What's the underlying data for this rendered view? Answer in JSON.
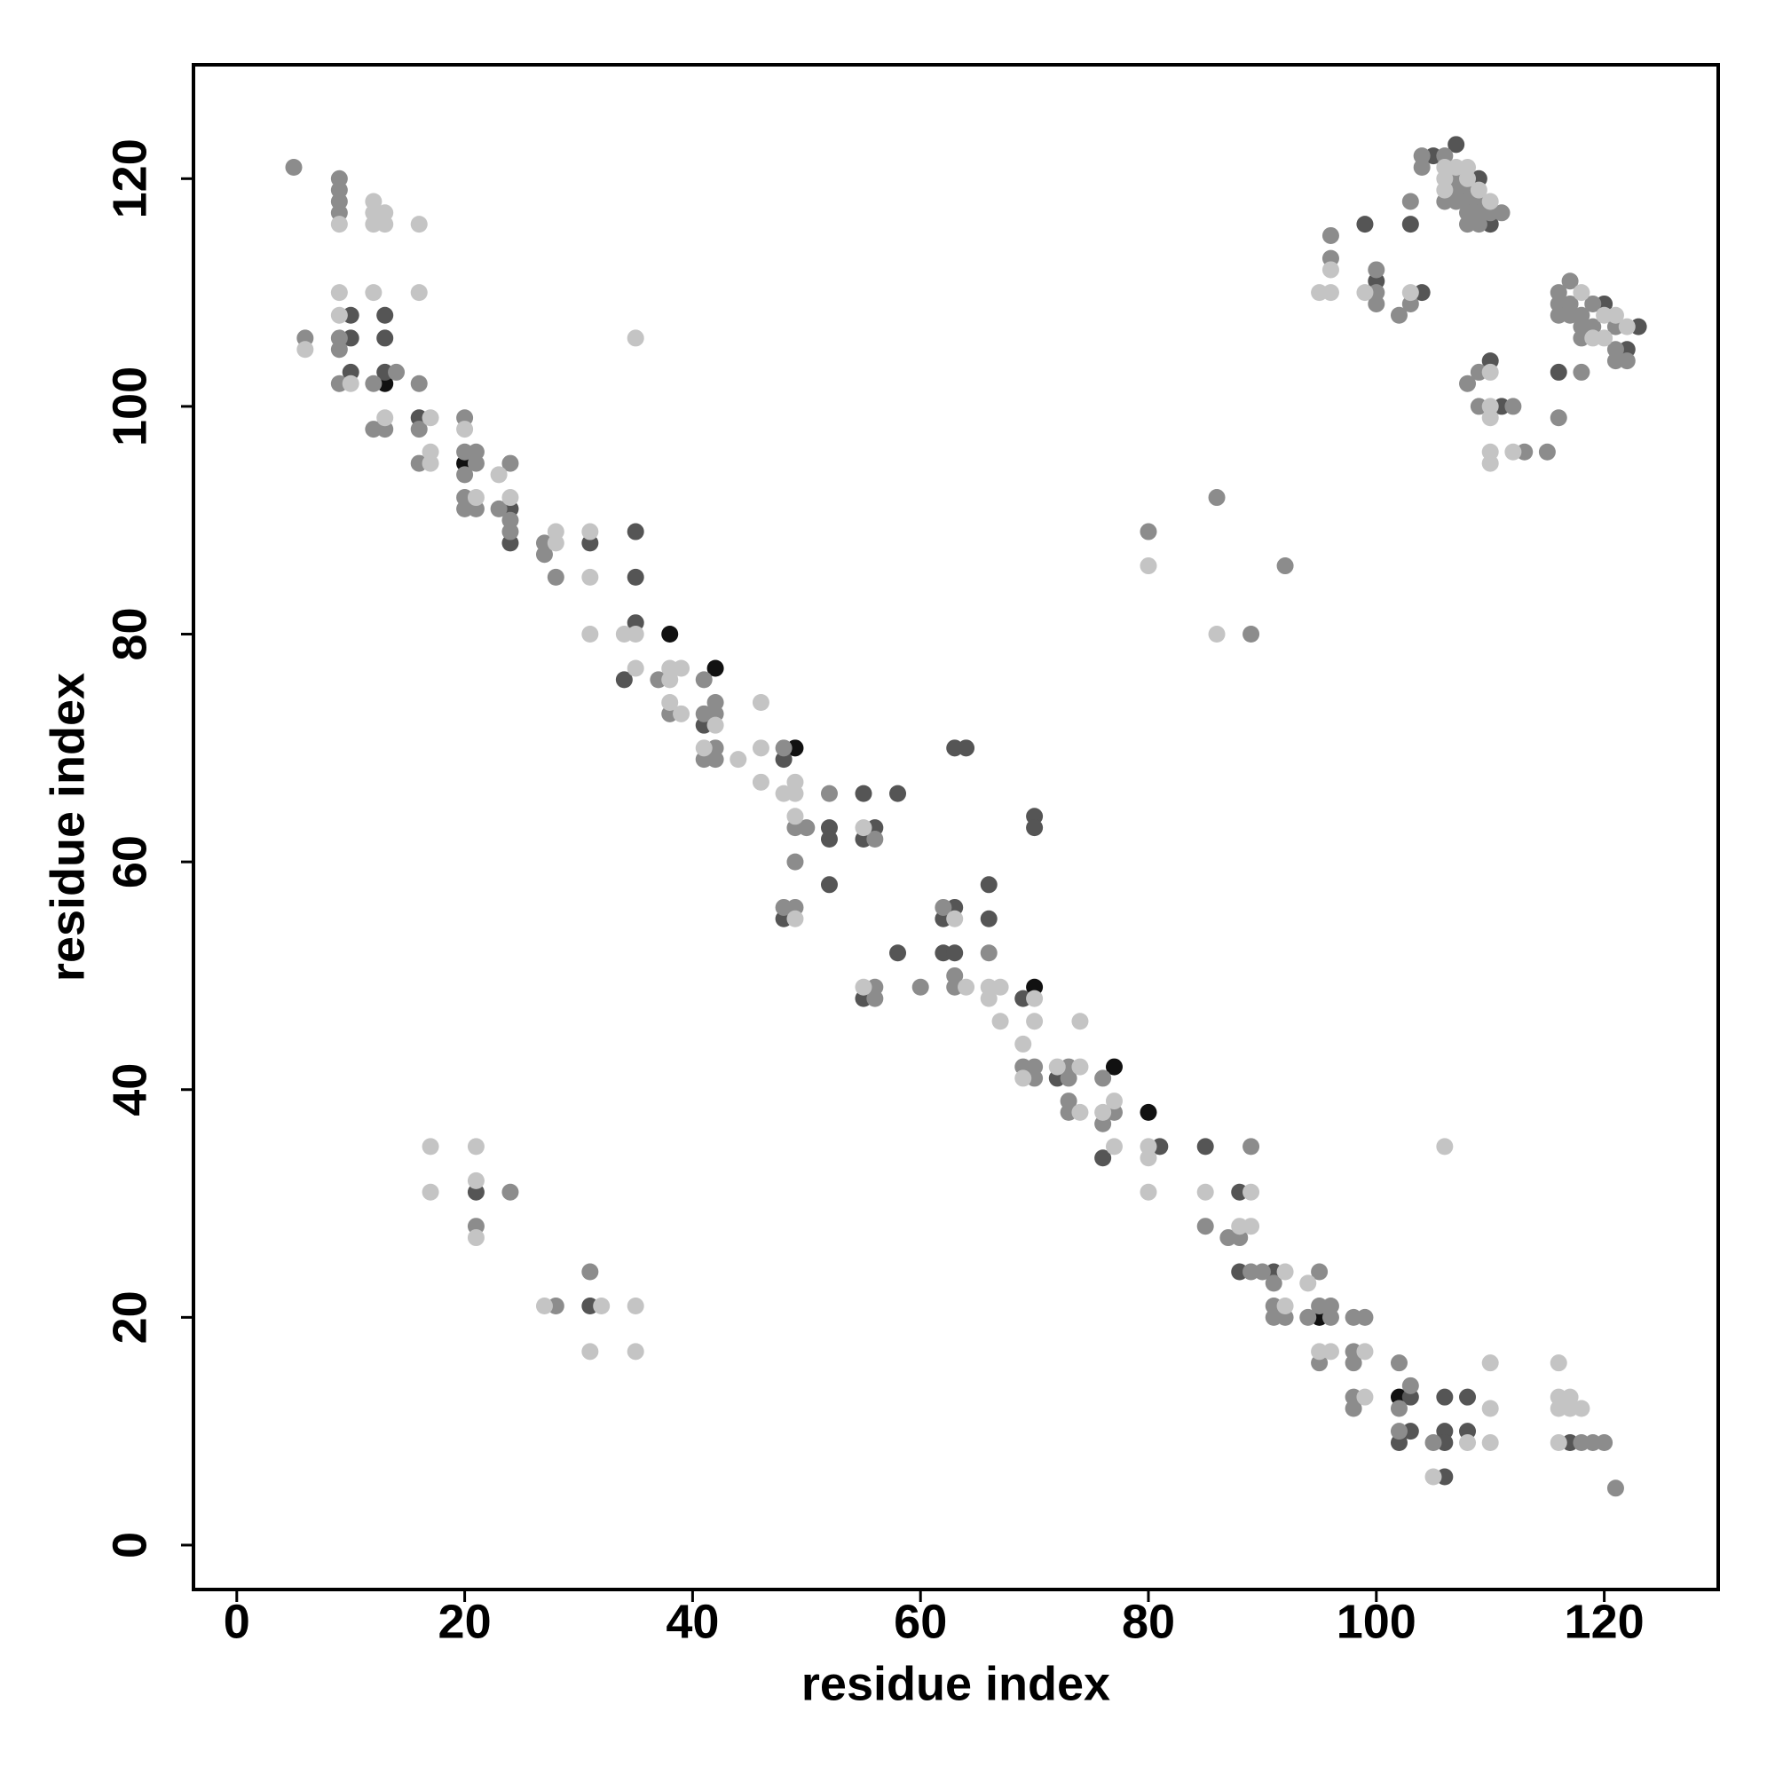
{
  "chart_data": {
    "type": "scatter",
    "x_label": "residue index",
    "y_label": "residue index",
    "xlim": [
      -3.8,
      130
    ],
    "ylim": [
      -3.9,
      130
    ],
    "xticks": [
      0,
      20,
      40,
      60,
      80,
      100,
      120
    ],
    "yticks": [
      0,
      20,
      40,
      60,
      80,
      100,
      120
    ],
    "series": [
      {
        "color": "#111111",
        "x": [
          13,
          20,
          38,
          42,
          49,
          70,
          77,
          80,
          95,
          102
        ],
        "values": [
          102,
          95,
          80,
          77,
          70,
          49,
          42,
          38,
          20,
          13
        ]
      },
      {
        "color": "#555555",
        "x": [
          10,
          13,
          10,
          13,
          10,
          13,
          16,
          24,
          24,
          31,
          35,
          35,
          35,
          34,
          41,
          48,
          52,
          52,
          55,
          55,
          56,
          58,
          52,
          48,
          55,
          58,
          63,
          64,
          63,
          62,
          62,
          63,
          66,
          66,
          70,
          70,
          69,
          72,
          76,
          81,
          85,
          88,
          88,
          91,
          103,
          103,
          102,
          106,
          106,
          106,
          108,
          108,
          106,
          117,
          21,
          31,
          99,
          100,
          104,
          103,
          105,
          107,
          109,
          110,
          110,
          111,
          120,
          123,
          122,
          116
        ],
        "values": [
          108,
          108,
          106,
          106,
          103,
          103,
          99,
          91,
          88,
          88,
          89,
          85,
          81,
          76,
          72,
          69,
          63,
          62,
          66,
          62,
          63,
          66,
          58,
          55,
          48,
          52,
          70,
          70,
          56,
          55,
          52,
          52,
          58,
          55,
          64,
          63,
          48,
          41,
          34,
          35,
          35,
          31,
          24,
          24,
          13,
          10,
          9,
          10,
          9,
          13,
          13,
          10,
          6,
          9,
          31,
          21,
          116,
          111,
          110,
          116,
          122,
          123,
          120,
          116,
          104,
          100,
          109,
          107,
          105,
          103
        ]
      },
      {
        "color": "#8c8c8c",
        "x": [
          5,
          9,
          9,
          9,
          9,
          6,
          9,
          9,
          14,
          9,
          12,
          16,
          12,
          13,
          16,
          16,
          20,
          20,
          21,
          21,
          20,
          24,
          20,
          20,
          21,
          23,
          24,
          24,
          27,
          27,
          28,
          37,
          41,
          38,
          41,
          42,
          42,
          42,
          41,
          42,
          48,
          49,
          50,
          52,
          56,
          49,
          48,
          49,
          56,
          56,
          60,
          62,
          63,
          63,
          66,
          69,
          70,
          70,
          73,
          73,
          73,
          73,
          76,
          77,
          76,
          89,
          85,
          87,
          88,
          89,
          90,
          91,
          95,
          91,
          91,
          92,
          94,
          95,
          96,
          96,
          98,
          99,
          95,
          98,
          98,
          98,
          98,
          102,
          103,
          102,
          102,
          105,
          118,
          119,
          120,
          121,
          24,
          21,
          28,
          31,
          80,
          86,
          92,
          89,
          96,
          96,
          100,
          100,
          100,
          102,
          103,
          103,
          104,
          104,
          106,
          107,
          107,
          108,
          106,
          107,
          108,
          109,
          108,
          109,
          110,
          111,
          108,
          109,
          108,
          109,
          109,
          112,
          113,
          115,
          116,
          117,
          116,
          117,
          116,
          117,
          118,
          119,
          118,
          119,
          118,
          121,
          121,
          121,
          122,
          118,
          116
        ],
        "values": [
          121,
          120,
          119,
          118,
          117,
          106,
          106,
          105,
          103,
          102,
          102,
          102,
          98,
          98,
          98,
          95,
          99,
          96,
          96,
          95,
          94,
          95,
          92,
          91,
          91,
          91,
          90,
          89,
          88,
          87,
          85,
          76,
          76,
          73,
          73,
          74,
          73,
          70,
          69,
          69,
          70,
          63,
          63,
          66,
          62,
          60,
          56,
          56,
          49,
          48,
          49,
          56,
          50,
          49,
          52,
          42,
          42,
          41,
          42,
          41,
          39,
          38,
          41,
          38,
          37,
          35,
          28,
          27,
          27,
          24,
          24,
          23,
          24,
          21,
          20,
          20,
          20,
          21,
          21,
          20,
          20,
          20,
          16,
          17,
          16,
          13,
          12,
          16,
          14,
          12,
          10,
          9,
          9,
          9,
          9,
          5,
          31,
          28,
          21,
          24,
          89,
          92,
          86,
          80,
          115,
          113,
          112,
          110,
          109,
          108,
          109,
          118,
          122,
          121,
          122,
          120,
          119,
          119,
          118,
          118,
          118,
          118,
          117,
          117,
          117,
          117,
          116,
          116,
          102,
          103,
          100,
          100,
          96,
          96,
          110,
          111,
          109,
          109,
          108,
          108,
          108,
          109,
          107,
          107,
          106,
          107,
          105,
          104,
          104,
          103,
          99
        ]
      },
      {
        "color": "#c4c4c4",
        "x": [
          9,
          12,
          12,
          12,
          13,
          13,
          16,
          9,
          12,
          16,
          9,
          6,
          10,
          13,
          17,
          17,
          17,
          20,
          23,
          21,
          24,
          28,
          28,
          31,
          31,
          31,
          34,
          35,
          35,
          38,
          38,
          39,
          38,
          39,
          42,
          41,
          44,
          46,
          46,
          46,
          48,
          49,
          49,
          49,
          55,
          49,
          55,
          63,
          64,
          66,
          67,
          66,
          67,
          70,
          70,
          69,
          69,
          72,
          74,
          74,
          74,
          76,
          77,
          77,
          80,
          80,
          80,
          85,
          89,
          88,
          89,
          92,
          94,
          92,
          95,
          96,
          99,
          99,
          108,
          110,
          110,
          110,
          105,
          116,
          116,
          117,
          116,
          117,
          118,
          116,
          106,
          17,
          21,
          17,
          21,
          21,
          27,
          32,
          35,
          31,
          35,
          35,
          80,
          86,
          96,
          95,
          96,
          99,
          103,
          106,
          107,
          108,
          106,
          108,
          106,
          109,
          110,
          110,
          110,
          110,
          110,
          110,
          112,
          118,
          120,
          120,
          121,
          119,
          122
        ],
        "values": [
          116,
          118,
          117,
          116,
          117,
          116,
          116,
          110,
          110,
          110,
          108,
          105,
          102,
          99,
          99,
          95,
          96,
          98,
          94,
          92,
          92,
          89,
          88,
          89,
          85,
          80,
          80,
          80,
          77,
          77,
          76,
          77,
          74,
          73,
          72,
          70,
          69,
          74,
          70,
          67,
          66,
          67,
          66,
          64,
          63,
          55,
          49,
          55,
          49,
          49,
          49,
          48,
          46,
          48,
          46,
          44,
          41,
          42,
          42,
          38,
          46,
          38,
          39,
          35,
          35,
          34,
          31,
          31,
          31,
          28,
          28,
          24,
          23,
          21,
          17,
          17,
          17,
          13,
          9,
          16,
          12,
          9,
          6,
          16,
          13,
          13,
          12,
          12,
          12,
          9,
          35,
          35,
          35,
          31,
          32,
          27,
          21,
          21,
          21,
          17,
          17,
          106,
          86,
          80,
          112,
          110,
          110,
          110,
          110,
          121,
          121,
          121,
          120,
          120,
          119,
          119,
          118,
          103,
          100,
          99,
          96,
          95,
          96,
          110,
          108,
          106,
          108,
          106,
          107
        ]
      }
    ]
  }
}
